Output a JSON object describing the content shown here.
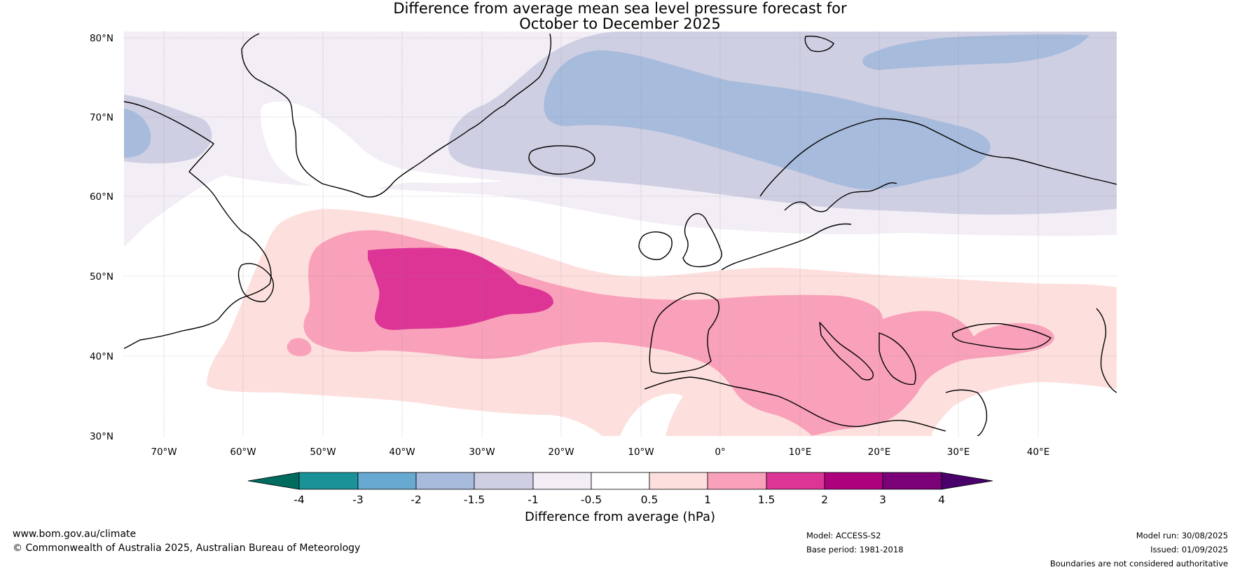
{
  "title": {
    "line1": "Difference from average mean sea level pressure forecast for",
    "line2": "October to December 2025"
  },
  "map": {
    "lat_labels": [
      "80°N",
      "70°N",
      "60°N",
      "50°N",
      "40°N",
      "30°N"
    ],
    "lon_labels": [
      "70°W",
      "60°W",
      "50°W",
      "40°W",
      "30°W",
      "20°W",
      "10°W",
      "0°",
      "10°E",
      "20°E",
      "30°E",
      "40°E"
    ],
    "extent": {
      "lon": [
        -75,
        50
      ],
      "lat": [
        30,
        81
      ]
    },
    "gridlines": true,
    "colors": {
      "less_than_neg1": "#cfcfe3",
      "neg1_to_neg0_5": "#f3edf6",
      "neg2_to_neg1_5": "#a7bbdc",
      "pos0_5_to_1": "#fde0dd",
      "pos1_to_1_5": "#f9a1ba",
      "pos1_5_to_2": "#dd3596",
      "coastline": "#000000",
      "borders": "#808080"
    }
  },
  "colorbar": {
    "ticks": [
      "-4",
      "-3",
      "-2",
      "-1.5",
      "-1",
      "-0.5",
      "0.5",
      "1",
      "1.5",
      "2",
      "3",
      "4"
    ],
    "colors": [
      "#006c5f",
      "#1a9298",
      "#68a9d2",
      "#a7bbdc",
      "#cfcfe3",
      "#f3edf6",
      "#ffffff",
      "#fde0dd",
      "#f9a1ba",
      "#dd3596",
      "#ae017e",
      "#7a0177",
      "#49006a"
    ],
    "label": "Difference from average (hPa)"
  },
  "footer": {
    "website": "www.bom.gov.au/climate",
    "copyright": "© Commonwealth of Australia 2025, Australian Bureau of Meteorology",
    "model": "Model: ACCESS-S2",
    "base_period": "Base period: 1981-2018",
    "model_run": "Model run: 30/08/2025",
    "issued": "Issued: 01/09/2025",
    "disclaimer": "Boundaries are not considered authoritative"
  }
}
